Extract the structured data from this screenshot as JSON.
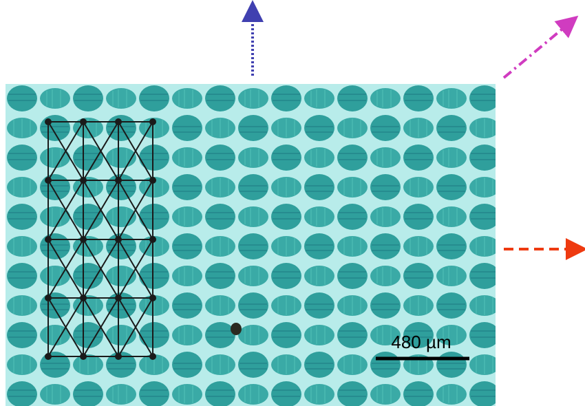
{
  "scale_bar": {
    "label": "480 µm"
  }
}
